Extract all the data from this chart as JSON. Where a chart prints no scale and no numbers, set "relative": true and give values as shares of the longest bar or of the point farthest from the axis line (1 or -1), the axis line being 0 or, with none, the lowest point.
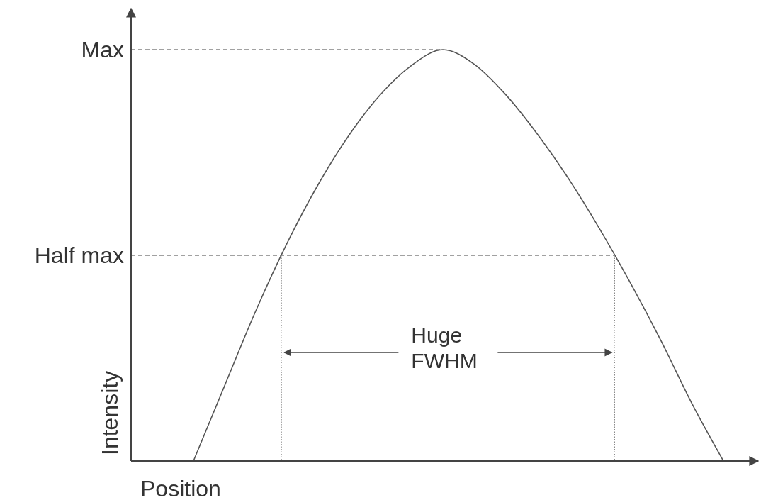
{
  "chart_data": {
    "type": "line",
    "relative": true,
    "xlabel": "Position",
    "ylabel": "Intensity",
    "categories": [
      null,
      null,
      null,
      null,
      null,
      null,
      null,
      null,
      null,
      null,
      null,
      null,
      null,
      null,
      null,
      null,
      null,
      null,
      null,
      null,
      null
    ],
    "series": [
      {
        "color": "#555555",
        "values": [
          null,
          null,
          0,
          0.183,
          0.365,
          0.529,
          0.672,
          0.793,
          0.891,
          0.962,
          1,
          0.965,
          0.892,
          0.798,
          0.69,
          0.568,
          0.435,
          0.292,
          0.138,
          0,
          null
        ]
      }
    ],
    "ref_lines": [
      {
        "axis": "y",
        "value": 1,
        "label": "Max",
        "line_style": "dashed"
      },
      {
        "axis": "y",
        "value": 0.5,
        "label": "Half max",
        "line_style": "dashed"
      }
    ],
    "annotations": [
      "Huge FWHM"
    ]
  }
}
